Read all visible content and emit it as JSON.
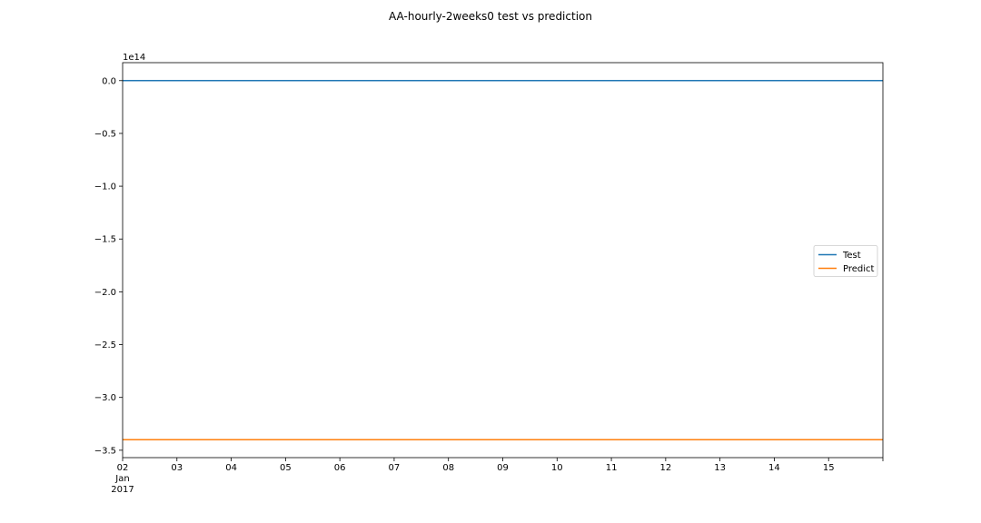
{
  "chart_data": {
    "type": "line",
    "title": "AA-hourly-2weeks0 test vs prediction",
    "xlabel": "",
    "ylabel": "",
    "y_offset_text": "1e14",
    "x_ticks": [
      "02",
      "03",
      "04",
      "05",
      "06",
      "07",
      "08",
      "09",
      "10",
      "11",
      "12",
      "13",
      "14",
      "15"
    ],
    "x_start_secondary_labels": [
      "Jan",
      "2017"
    ],
    "x_range": [
      "2017-01-02",
      "2017-01-16"
    ],
    "y_ticks": [
      0.0,
      -0.5,
      -1.0,
      -1.5,
      -2.0,
      -2.5,
      -3.0,
      -3.5
    ],
    "y_tick_labels": [
      "0.0",
      "−0.5",
      "−1.0",
      "−1.5",
      "−2.0",
      "−2.5",
      "−3.0",
      "−3.5"
    ],
    "ylim": [
      -3.57,
      0.17
    ],
    "y_scale_multiplier": 100000000000000.0,
    "grid": false,
    "legend_position": "center-right",
    "series": [
      {
        "name": "Test",
        "color": "#1f77b4",
        "x": [
          "2017-01-02",
          "2017-01-16"
        ],
        "values": [
          0.0,
          0.0
        ]
      },
      {
        "name": "Predict",
        "color": "#ff7f0e",
        "x": [
          "2017-01-02",
          "2017-01-16"
        ],
        "values": [
          -3.4,
          -3.4
        ]
      }
    ]
  }
}
